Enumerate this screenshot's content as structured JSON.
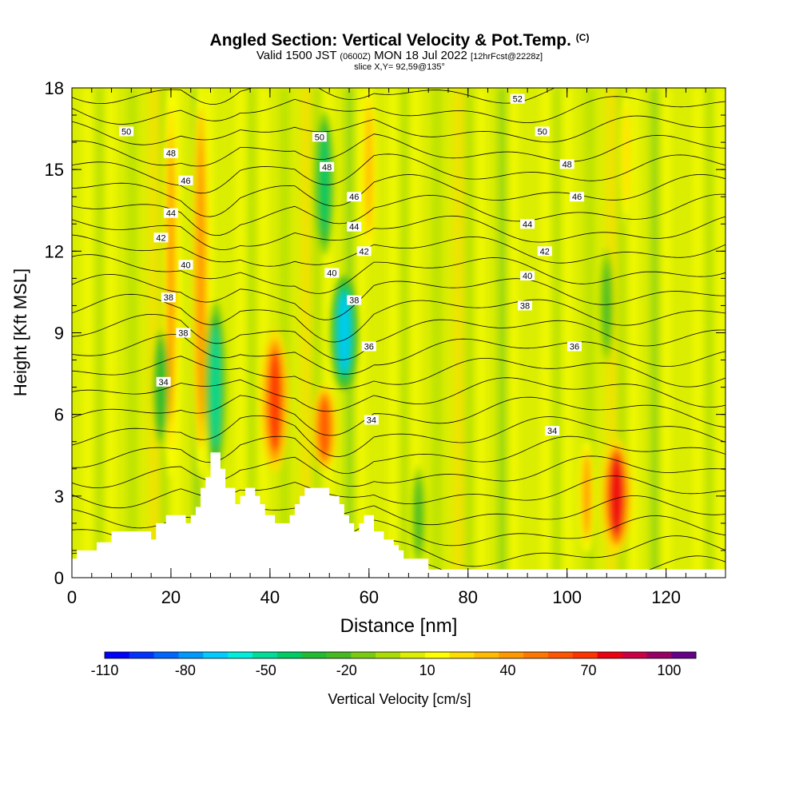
{
  "title": {
    "main": "Angled Section: Vertical Velocity & Pot.Temp.",
    "copyright": "(C)",
    "valid_prefix": "Valid 1500 JST",
    "valid_utc": "(0600Z)",
    "valid_date": "MON 18 Jul 2022",
    "forecast_note": "[12hrFcst@2228z]",
    "slice": "slice X,Y= 92,59@135°"
  },
  "chart_data": {
    "type": "heatmap",
    "title": "Angled Section: Vertical Velocity & Pot.Temp.",
    "xlabel": "Distance [nm]",
    "ylabel": "Height [Kft MSL]",
    "xlim": [
      0,
      132
    ],
    "ylim": [
      0,
      18
    ],
    "x_ticks": [
      "0",
      "20",
      "40",
      "60",
      "80",
      "100",
      "120"
    ],
    "y_ticks": [
      "0",
      "3",
      "6",
      "9",
      "12",
      "15",
      "18"
    ],
    "colorbar": {
      "label": "Vertical Velocity [cm/s]",
      "range": [
        -110,
        110
      ],
      "tick_labels": [
        "-110",
        "-80",
        "-50",
        "-20",
        "10",
        "40",
        "70",
        "100"
      ],
      "colors": [
        "#0000ff",
        "#0033ff",
        "#0066ff",
        "#0099ff",
        "#00ccff",
        "#00eedd",
        "#00dd99",
        "#00cc66",
        "#22bb33",
        "#44bb22",
        "#77cc11",
        "#aadd00",
        "#ddee00",
        "#ffff00",
        "#ffdd00",
        "#ffbb00",
        "#ff9900",
        "#ff7700",
        "#ff5500",
        "#ff3300",
        "#ee0011",
        "#cc0044",
        "#990066",
        "#660088"
      ]
    },
    "updraft_cores": [
      {
        "x": 20,
        "y_range": [
          4,
          18
        ],
        "w": 40
      },
      {
        "x": 26,
        "y_range": [
          4,
          18
        ],
        "w": 45
      },
      {
        "x": 41,
        "y_range": [
          4,
          9
        ],
        "w": 70
      },
      {
        "x": 51,
        "y_range": [
          4,
          7
        ],
        "w": 60
      },
      {
        "x": 60,
        "y_range": [
          12,
          18
        ],
        "w": 35
      },
      {
        "x": 104,
        "y_range": [
          1,
          5
        ],
        "w": 40
      },
      {
        "x": 110,
        "y_range": [
          1,
          5
        ],
        "w": 75
      },
      {
        "x": 112,
        "y_range": [
          13,
          18
        ],
        "w": 25
      }
    ],
    "downdraft_cores": [
      {
        "x": 18,
        "y_range": [
          5,
          9
        ],
        "w": -30
      },
      {
        "x": 29,
        "y_range": [
          4,
          10
        ],
        "w": -50
      },
      {
        "x": 51,
        "y_range": [
          12,
          17
        ],
        "w": -45
      },
      {
        "x": 55,
        "y_range": [
          7,
          11
        ],
        "w": -65
      },
      {
        "x": 70,
        "y_range": [
          0.5,
          4
        ],
        "w": -25
      },
      {
        "x": 108,
        "y_range": [
          8,
          12
        ],
        "w": -25
      }
    ],
    "potential_temperature": {
      "unit": "C",
      "labeled_contours": [
        34,
        36,
        38,
        40,
        42,
        44,
        46,
        48,
        50,
        52
      ]
    },
    "contour_labels": [
      {
        "text": "50",
        "x": 11,
        "y": 16.4
      },
      {
        "text": "48",
        "x": 20,
        "y": 15.6
      },
      {
        "text": "46",
        "x": 23,
        "y": 14.6
      },
      {
        "text": "44",
        "x": 20,
        "y": 13.4
      },
      {
        "text": "42",
        "x": 18,
        "y": 12.5
      },
      {
        "text": "40",
        "x": 23,
        "y": 11.5
      },
      {
        "text": "38",
        "x": 19.5,
        "y": 10.3
      },
      {
        "text": "38",
        "x": 22.5,
        "y": 9.0
      },
      {
        "text": "34",
        "x": 18.5,
        "y": 7.2
      },
      {
        "text": "50",
        "x": 50,
        "y": 16.2
      },
      {
        "text": "48",
        "x": 51.5,
        "y": 15.1
      },
      {
        "text": "46",
        "x": 57,
        "y": 14.0
      },
      {
        "text": "44",
        "x": 57,
        "y": 12.9
      },
      {
        "text": "42",
        "x": 59,
        "y": 12.0
      },
      {
        "text": "40",
        "x": 52.5,
        "y": 11.2
      },
      {
        "text": "38",
        "x": 57,
        "y": 10.2
      },
      {
        "text": "36",
        "x": 60,
        "y": 8.5
      },
      {
        "text": "34",
        "x": 60.5,
        "y": 5.8
      },
      {
        "text": "52",
        "x": 90,
        "y": 17.6
      },
      {
        "text": "50",
        "x": 95,
        "y": 16.4
      },
      {
        "text": "48",
        "x": 100,
        "y": 15.2
      },
      {
        "text": "46",
        "x": 102,
        "y": 14.0
      },
      {
        "text": "44",
        "x": 92,
        "y": 13.0
      },
      {
        "text": "42",
        "x": 95.5,
        "y": 12.0
      },
      {
        "text": "40",
        "x": 92,
        "y": 11.1
      },
      {
        "text": "38",
        "x": 91.5,
        "y": 10.0
      },
      {
        "text": "36",
        "x": 101.5,
        "y": 8.5
      },
      {
        "text": "34",
        "x": 97,
        "y": 5.4
      }
    ],
    "terrain": {
      "x": [
        0,
        1,
        5,
        8,
        12,
        16,
        17,
        19,
        22,
        23,
        24,
        25,
        26,
        27,
        28,
        29,
        30,
        31,
        33,
        34,
        35,
        37,
        38,
        39,
        40,
        41,
        42,
        44,
        45,
        46,
        47,
        49,
        50,
        51,
        52,
        53,
        54,
        55,
        56,
        57,
        58,
        59,
        60,
        61,
        62,
        63,
        64,
        65,
        66,
        67,
        68,
        69,
        72,
        132
      ],
      "y": [
        0.7,
        1.0,
        1.3,
        1.7,
        1.7,
        1.4,
        2.0,
        2.3,
        2.3,
        2.0,
        2.3,
        2.6,
        3.3,
        3.7,
        4.6,
        4.6,
        4.0,
        3.3,
        2.7,
        3.0,
        3.3,
        3.0,
        2.7,
        2.3,
        2.3,
        2.0,
        2.0,
        2.3,
        2.7,
        3.0,
        3.3,
        3.3,
        3.3,
        3.3,
        3.0,
        3.0,
        2.7,
        2.3,
        2.0,
        1.7,
        2.0,
        2.3,
        2.3,
        1.7,
        1.7,
        1.4,
        1.4,
        1.2,
        1.0,
        0.7,
        0.7,
        0.7,
        0.3,
        0.3
      ]
    }
  }
}
